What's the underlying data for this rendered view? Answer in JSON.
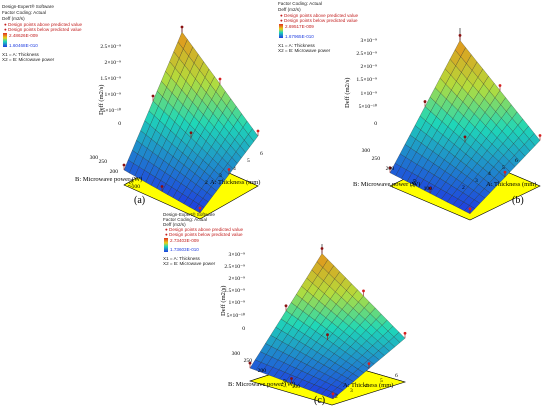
{
  "panels": [
    {
      "panel_label": "(a)",
      "software": "Design-Expert® Software",
      "factor_coding": "Factor Coding: Actual",
      "response": "Deff (m2/s)",
      "above_text": "● Design points above predicted value",
      "below_text": "● Design points below predicted value",
      "hi_value": "2.48626E-009",
      "lo_value": "1.60468E-010",
      "x1_text": "X1 = A: Thickness",
      "x2_text": "X2 = B: Microwave power"
    },
    {
      "panel_label": "(b)",
      "software": "",
      "factor_coding": "Factor Coding: Actual",
      "response": "Deff (m2/s)",
      "above_text": "● Design points above predicted value",
      "below_text": "● Design points below predicted value",
      "hi_value": "2.69517E-009",
      "lo_value": "1.67965E-010",
      "x1_text": "X1 = A: Thickness",
      "x2_text": "X2 = B: Microwave power"
    },
    {
      "panel_label": "(c)",
      "software": "Design-Expert® Software",
      "factor_coding": "Factor Coding: Actual",
      "response": "Deff (m2/s)",
      "above_text": "● Design points above predicted value",
      "below_text": "● Design points below predicted value",
      "hi_value": "2.73403E-009",
      "lo_value": "1.73603E-010",
      "x1_text": "X1 = A: Thickness",
      "x2_text": "X2 = B: Microwave power"
    }
  ],
  "colors": {
    "surface_low": "#1f3de0",
    "surface_mid": "#1fd7b8",
    "surface_high": "#e5931a",
    "floor": "#ffff00",
    "point_above": "#d62020",
    "point_below": "#8a1010"
  },
  "chart_data": [
    {
      "type": "surface3d",
      "xlabel": "A: Thickness (mm)",
      "ylabel": "B: Microwave power (W)",
      "zlabel": "Deff (m2/s)",
      "x_ticks": [
        "2",
        "3",
        "4",
        "5",
        "6"
      ],
      "y_ticks": [
        "100",
        "150",
        "200",
        "250",
        "300"
      ],
      "z_ticks": [
        "0",
        "5×10⁻¹⁰",
        "1×10⁻⁹",
        "1.5×10⁻⁹",
        "2×10⁻⁹",
        "2.5×10⁻⁹"
      ],
      "zlim": [
        0,
        2.5e-09
      ],
      "corners": {
        "x2_y100": 3e-10,
        "x6_y100": 1.2e-10,
        "x2_y300": 2.4e-09,
        "x6_y300": 1e-09
      }
    },
    {
      "type": "surface3d",
      "xlabel": "A: Thickness (mm)",
      "ylabel": "B: Microwave power (W)",
      "zlabel": "Deff (m2/s)",
      "x_ticks": [
        "2",
        "3",
        "4",
        "5",
        "6"
      ],
      "y_ticks": [
        "100",
        "150",
        "200",
        "250",
        "300"
      ],
      "z_ticks": [
        "0",
        "5×10⁻¹⁰",
        "1×10⁻⁹",
        "1.5×10⁻⁹",
        "2×10⁻⁹",
        "2.5×10⁻⁹",
        "3×10⁻⁹"
      ],
      "zlim": [
        0,
        3e-09
      ],
      "corners": {
        "x2_y100": 3.2e-10,
        "x6_y100": 1.5e-10,
        "x2_y300": 2.7e-09,
        "x6_y300": 1.1e-09
      }
    },
    {
      "type": "surface3d",
      "xlabel": "A: Thickness (mm)",
      "ylabel": "B: Microwave power (W)",
      "zlabel": "Deff (m2/s)",
      "x_ticks": [
        "2",
        "3",
        "4",
        "5",
        "6"
      ],
      "y_ticks": [
        "100",
        "150",
        "200",
        "250",
        "300"
      ],
      "z_ticks": [
        "0",
        "5×10⁻¹⁰",
        "1×10⁻⁹",
        "1.5×10⁻⁹",
        "2×10⁻⁹",
        "2.5×10⁻⁹",
        "3×10⁻⁹"
      ],
      "zlim": [
        0,
        3e-09
      ],
      "corners": {
        "x2_y100": 3.4e-10,
        "x6_y100": 1.6e-10,
        "x2_y300": 2.75e-09,
        "x6_y300": 1.15e-09
      }
    }
  ]
}
